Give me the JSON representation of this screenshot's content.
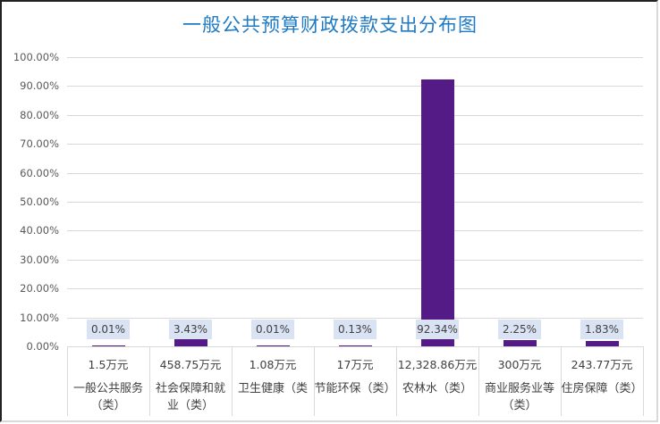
{
  "chart_data": {
    "type": "bar",
    "title": "一般公共预算财政拨款支出分布图",
    "xlabel": "",
    "ylabel": "",
    "ylim": [
      0,
      100
    ],
    "y_ticks": [
      "0.00%",
      "10.00%",
      "20.00%",
      "30.00%",
      "40.00%",
      "50.00%",
      "60.00%",
      "70.00%",
      "80.00%",
      "90.00%",
      "100.00%"
    ],
    "grid": true,
    "legend": null,
    "bar_color": "#541b86",
    "label_bg_color": "#dae3f3",
    "title_color": "#1f7ac4",
    "categories": [
      "一般公共服务（类）",
      "社会保障和就业（类）",
      "卫生健康（类）",
      "节能环保（类）",
      "农林水（类）",
      "商业服务业等（类）",
      "住房保障（类）"
    ],
    "values": [
      0.01,
      3.43,
      0.01,
      0.13,
      92.34,
      2.25,
      1.83
    ],
    "data_labels": [
      "0.01%",
      "3.43%",
      "0.01%",
      "0.13%",
      "92.34%",
      "2.25%",
      "1.83%"
    ],
    "table_rows": {
      "amounts": [
        "1.5万元",
        "458.75万元",
        "1.08万元",
        "17万元",
        "12,328.86万元",
        "300万元",
        "243.77万元"
      ],
      "category_display": [
        [
          "一般公共服务",
          "（类）"
        ],
        [
          "社会保障和就",
          "业（类）"
        ],
        [
          "卫生健康（类",
          ""
        ],
        [
          "节能环保（类）",
          ""
        ],
        [
          "农林水（类）",
          ""
        ],
        [
          "商业服务业等",
          "（类）"
        ],
        [
          "住房保障（类）",
          ""
        ]
      ]
    }
  }
}
